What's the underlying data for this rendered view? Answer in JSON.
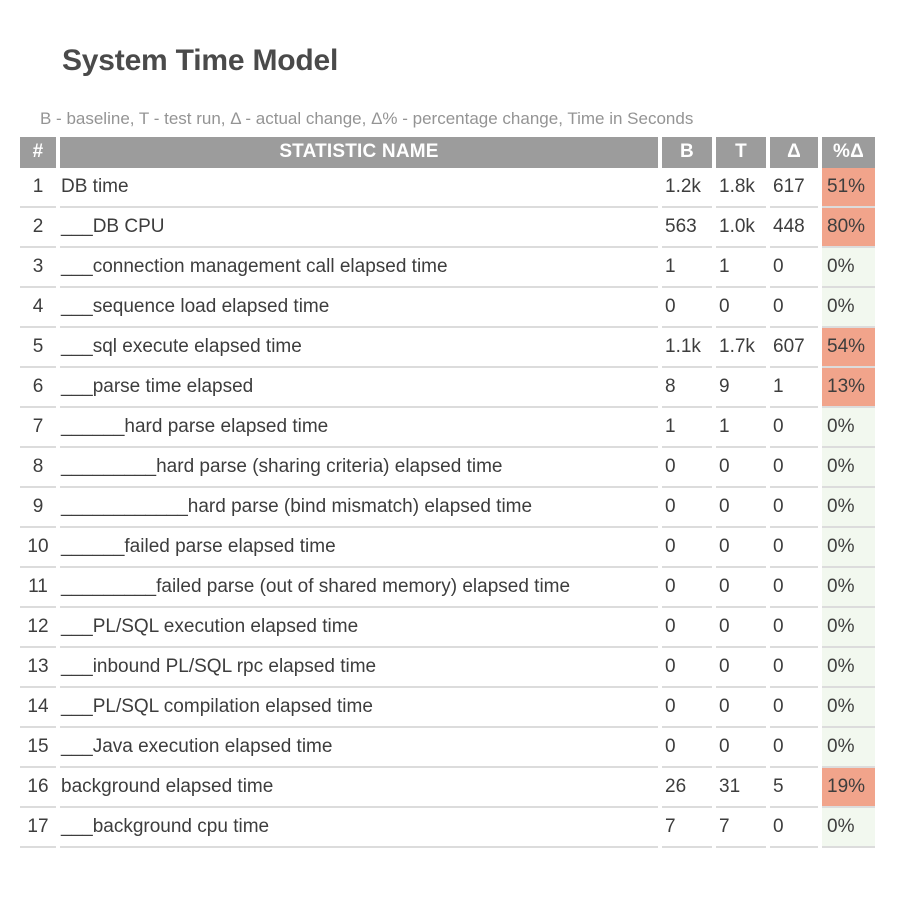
{
  "page": {
    "title": "System Time Model",
    "legend": "B - baseline, T - test run, Δ - actual change, Δ% - percentage change, Time in Seconds"
  },
  "colors": {
    "header_bg": "#9c9c9c",
    "header_text": "#ffffff",
    "highlight_pct_bg": "#f1a48b",
    "normal_pct_bg": "#f2f8ef",
    "row_text": "#3d3d3d",
    "row_underline": "#dcdcdc",
    "title_text": "#4a4a4a",
    "legend_text": "#949494"
  },
  "table": {
    "columns": [
      "#",
      "STATISTIC NAME",
      "B",
      "T",
      "Δ",
      "%Δ"
    ],
    "rows": [
      {
        "num": "1",
        "name": "DB time",
        "b": "1.2k",
        "t": "1.8k",
        "delta": "617",
        "pct": "51%",
        "highlight": true
      },
      {
        "num": "2",
        "name": "___DB CPU",
        "b": "563",
        "t": "1.0k",
        "delta": "448",
        "pct": "80%",
        "highlight": true
      },
      {
        "num": "3",
        "name": "___connection management call elapsed time",
        "b": "1",
        "t": "1",
        "delta": "0",
        "pct": "0%",
        "highlight": false
      },
      {
        "num": "4",
        "name": "___sequence load elapsed time",
        "b": "0",
        "t": "0",
        "delta": "0",
        "pct": "0%",
        "highlight": false
      },
      {
        "num": "5",
        "name": "___sql execute elapsed time",
        "b": "1.1k",
        "t": "1.7k",
        "delta": "607",
        "pct": "54%",
        "highlight": true
      },
      {
        "num": "6",
        "name": "___parse time elapsed",
        "b": "8",
        "t": "9",
        "delta": "1",
        "pct": "13%",
        "highlight": true
      },
      {
        "num": "7",
        "name": "______hard parse elapsed time",
        "b": "1",
        "t": "1",
        "delta": "0",
        "pct": "0%",
        "highlight": false
      },
      {
        "num": "8",
        "name": "_________hard parse (sharing criteria) elapsed time",
        "b": "0",
        "t": "0",
        "delta": "0",
        "pct": "0%",
        "highlight": false
      },
      {
        "num": "9",
        "name": "____________hard parse (bind mismatch) elapsed time",
        "b": "0",
        "t": "0",
        "delta": "0",
        "pct": "0%",
        "highlight": false
      },
      {
        "num": "10",
        "name": "______failed parse elapsed time",
        "b": "0",
        "t": "0",
        "delta": "0",
        "pct": "0%",
        "highlight": false
      },
      {
        "num": "11",
        "name": "_________failed parse (out of shared memory) elapsed time",
        "b": "0",
        "t": "0",
        "delta": "0",
        "pct": "0%",
        "highlight": false
      },
      {
        "num": "12",
        "name": "___PL/SQL execution elapsed time",
        "b": "0",
        "t": "0",
        "delta": "0",
        "pct": "0%",
        "highlight": false
      },
      {
        "num": "13",
        "name": "___inbound PL/SQL rpc elapsed time",
        "b": "0",
        "t": "0",
        "delta": "0",
        "pct": "0%",
        "highlight": false
      },
      {
        "num": "14",
        "name": "___PL/SQL compilation elapsed time",
        "b": "0",
        "t": "0",
        "delta": "0",
        "pct": "0%",
        "highlight": false
      },
      {
        "num": "15",
        "name": "___Java execution elapsed time",
        "b": "0",
        "t": "0",
        "delta": "0",
        "pct": "0%",
        "highlight": false
      },
      {
        "num": "16",
        "name": "background elapsed time",
        "b": "26",
        "t": "31",
        "delta": "5",
        "pct": "19%",
        "highlight": true
      },
      {
        "num": "17",
        "name": "___background cpu time",
        "b": "7",
        "t": "7",
        "delta": "0",
        "pct": "0%",
        "highlight": false
      }
    ]
  }
}
